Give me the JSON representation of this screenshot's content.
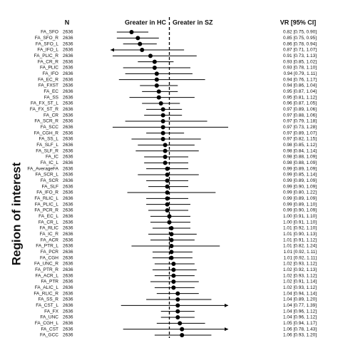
{
  "chart_data": {
    "type": "forest",
    "n_header": "N",
    "left_header": "Greater in HC",
    "right_header": "Greater in SZ",
    "value_header": "VR [95% CI]",
    "ylabel": "Region of interest",
    "xlim": [
      0.72,
      1.28
    ],
    "reference": 1,
    "color": "#000000",
    "categories": [
      "FA_SFO",
      "FA_SFO_R",
      "FA_SFO_L",
      "FA_IFO_L",
      "FA_PLIC_R",
      "FA_CR_R",
      "FA_PLIC",
      "FA_IFO",
      "FA_EC_R",
      "FA_FXST",
      "FA_EC",
      "FA_SS",
      "FA_FX_ST_L",
      "FA_FX_ST_R",
      "FA_CR",
      "FA_SCR_R",
      "FA_SCC",
      "FA_CGH_R",
      "FA_SS_L",
      "FA_SLF_L",
      "FA_SLF_R",
      "FA_IC",
      "FA_IC_L",
      "FA_AverageFA",
      "FA_SCR_L",
      "FA_SCR",
      "FA_SLF",
      "FA_IFO_R",
      "FA_RLIC_L",
      "FA_PLIC_L",
      "FA_PCR_R",
      "FA_EC_L",
      "FA_CR_L",
      "FA_RLIC",
      "FA_IC_R",
      "FA_ACR",
      "FA_PTR_L",
      "FA_PCR",
      "FA_CGH",
      "FA_UNC_R",
      "FA_PTR_R",
      "FA_ACR_L",
      "FA_PTR",
      "FA_ALIC_L",
      "FA_RLIC_R",
      "FA_SS_R",
      "FA_CST_L",
      "FA_FX",
      "FA_UNC",
      "FA_CGH_L",
      "FA_CST",
      "FA_GCC"
    ],
    "n": [
      2636,
      2636,
      2636,
      2636,
      2636,
      2636,
      2636,
      2636,
      2636,
      2636,
      2636,
      2636,
      2636,
      2636,
      2636,
      2636,
      2636,
      2636,
      2636,
      2636,
      2636,
      2636,
      2636,
      2636,
      2636,
      2636,
      2636,
      2636,
      2636,
      2636,
      2636,
      2636,
      2636,
      2636,
      2636,
      2636,
      2636,
      2636,
      2636,
      2636,
      2636,
      2636,
      2636,
      2636,
      2636,
      2636,
      2636,
      2636,
      2636,
      2636,
      2636,
      2636
    ],
    "values": [
      0.82,
      0.85,
      0.86,
      0.87,
      0.91,
      0.93,
      0.93,
      0.94,
      0.94,
      0.94,
      0.95,
      0.95,
      0.96,
      0.97,
      0.97,
      0.97,
      0.97,
      0.97,
      0.97,
      0.98,
      0.98,
      0.98,
      0.98,
      0.99,
      0.99,
      0.99,
      0.99,
      0.99,
      0.99,
      0.99,
      0.99,
      1.0,
      1.0,
      1.01,
      1.01,
      1.01,
      1.01,
      1.01,
      1.01,
      1.02,
      1.02,
      1.02,
      1.02,
      1.02,
      1.04,
      1.04,
      1.04,
      1.04,
      1.04,
      1.05,
      1.06,
      1.06
    ],
    "ci_lower": [
      0.75,
      0.75,
      0.78,
      0.71,
      0.73,
      0.85,
      0.78,
      0.79,
      0.76,
      0.86,
      0.87,
      0.81,
      0.87,
      0.89,
      0.88,
      0.79,
      0.73,
      0.89,
      0.82,
      0.85,
      0.84,
      0.88,
      0.88,
      0.89,
      0.85,
      0.89,
      0.9,
      0.8,
      0.89,
      0.89,
      0.9,
      0.91,
      0.91,
      0.92,
      0.9,
      0.91,
      0.82,
      0.92,
      0.92,
      0.93,
      0.92,
      0.93,
      0.91,
      0.93,
      0.94,
      0.89,
      0.77,
      0.96,
      0.96,
      0.94,
      0.78,
      0.93
    ],
    "ci_upper": [
      0.9,
      0.95,
      0.94,
      1.07,
      1.13,
      1.02,
      1.1,
      1.11,
      1.17,
      1.04,
      1.04,
      1.12,
      1.05,
      1.06,
      1.06,
      1.18,
      1.28,
      1.07,
      1.15,
      1.12,
      1.14,
      1.09,
      1.09,
      1.09,
      1.14,
      1.09,
      1.09,
      1.22,
      1.09,
      1.1,
      1.09,
      1.1,
      1.1,
      1.1,
      1.13,
      1.12,
      1.24,
      1.11,
      1.11,
      1.12,
      1.13,
      1.12,
      1.14,
      1.12,
      1.14,
      1.2,
      1.39,
      1.12,
      1.12,
      1.17,
      1.43,
      1.2
    ],
    "value_labels": [
      "0.82 [0.75, 0.90]",
      "0.85 [0.75, 0.95]",
      "0.86 [0.78, 0.94]",
      "0.87 [0.71, 1.07]",
      "0.91 [0.73, 1.13]",
      "0.93 [0.85, 1.02]",
      "0.93 [0.78, 1.10]",
      "0.94 [0.79, 1.11]",
      "0.94 [0.76, 1.17]",
      "0.94 [0.86, 1.04]",
      "0.95 [0.87, 1.04]",
      "0.95 [0.81, 1.12]",
      "0.96 [0.87, 1.05]",
      "0.97 [0.89, 1.06]",
      "0.97 [0.88, 1.06]",
      "0.97 [0.79, 1.18]",
      "0.97 [0.73, 1.28]",
      "0.97 [0.89, 1.07]",
      "0.97 [0.82, 1.15]",
      "0.98 [0.85, 1.12]",
      "0.98 [0.84, 1.14]",
      "0.98 [0.88, 1.09]",
      "0.98 [0.88, 1.09]",
      "0.99 [0.89, 1.09]",
      "0.99 [0.85, 1.14]",
      "0.99 [0.89, 1.09]",
      "0.99 [0.90, 1.09]",
      "0.99 [0.80, 1.22]",
      "0.99 [0.89, 1.09]",
      "0.99 [0.89, 1.10]",
      "0.99 [0.90, 1.09]",
      "1.00 [0.91, 1.10]",
      "1.00 [0.91, 1.10]",
      "1.01 [0.92, 1.10]",
      "1.01 [0.90, 1.13]",
      "1.01 [0.91, 1.12]",
      "1.01 [0.82, 1.24]",
      "1.01 [0.92, 1.11]",
      "1.01 [0.92, 1.11]",
      "1.02 [0.93, 1.12]",
      "1.02 [0.92, 1.13]",
      "1.02 [0.93, 1.12]",
      "1.02 [0.91, 1.14]",
      "1.02 [0.93, 1.12]",
      "1.04 [0.94, 1.14]",
      "1.04 [0.89, 1.20]",
      "1.04 [0.77, 1.39]",
      "1.04 [0.96, 1.12]",
      "1.04 [0.96, 1.12]",
      "1.05 [0.94, 1.17]",
      "1.06 [0.78, 1.43]",
      "1.06 [0.93, 1.20]"
    ]
  }
}
